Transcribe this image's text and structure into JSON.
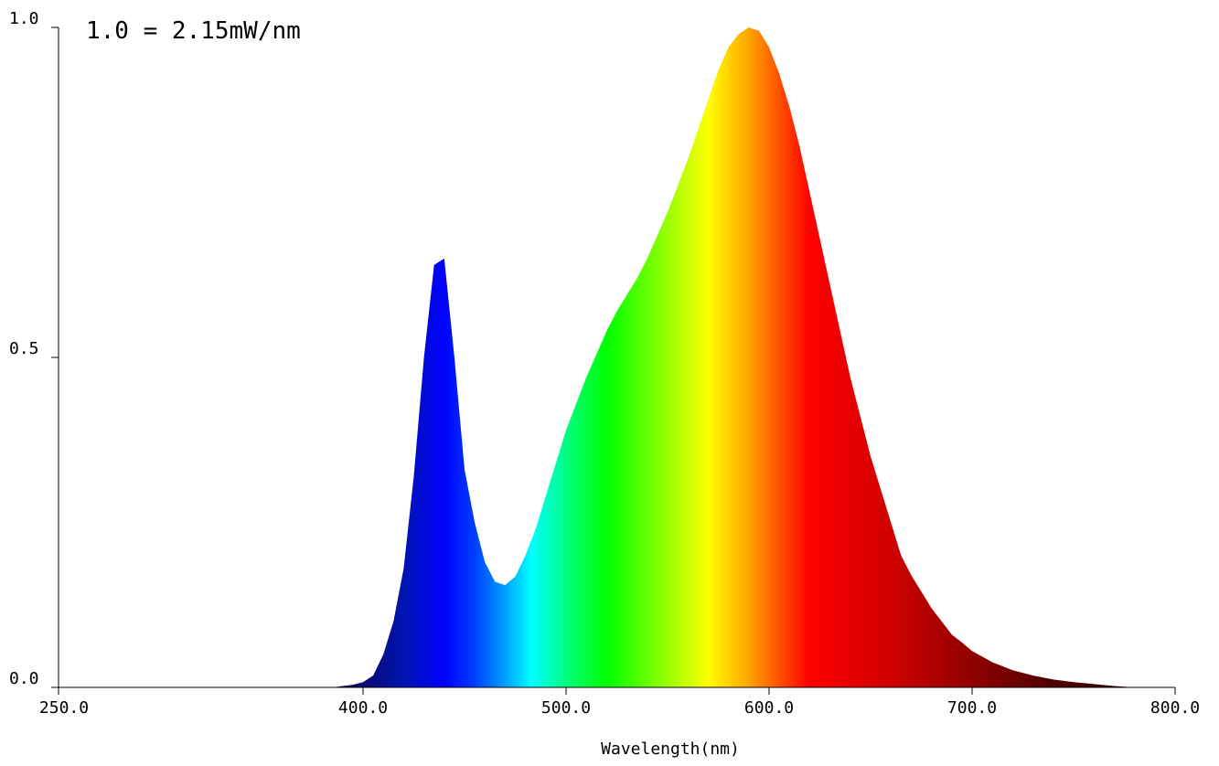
{
  "chart_data": {
    "type": "area",
    "title": "",
    "annotation": "1.0 = 2.15mW/nm",
    "xlabel": "Wavelength(nm)",
    "ylabel": "",
    "xlim": [
      250,
      800
    ],
    "ylim": [
      0,
      1
    ],
    "x_ticks": [
      {
        "value": 250,
        "label": "250.0"
      },
      {
        "value": 400,
        "label": "400.0"
      },
      {
        "value": 500,
        "label": "500.0"
      },
      {
        "value": 600,
        "label": "600.0"
      },
      {
        "value": 700,
        "label": "700.0"
      },
      {
        "value": 800,
        "label": "800.0"
      }
    ],
    "y_ticks": [
      {
        "value": 0,
        "label": "0.0"
      },
      {
        "value": 0.5,
        "label": "0.5"
      },
      {
        "value": 1,
        "label": "1.0"
      }
    ],
    "grid": false,
    "fill": "visible-spectrum gradient",
    "series": [
      {
        "x": [
          380,
          385,
          390,
          395,
          400,
          405,
          410,
          415,
          420,
          425,
          430,
          435,
          440,
          445,
          450,
          455,
          460,
          465,
          470,
          475,
          480,
          485,
          490,
          495,
          500,
          505,
          510,
          515,
          520,
          525,
          530,
          535,
          540,
          545,
          550,
          555,
          560,
          565,
          570,
          575,
          580,
          585,
          590,
          595,
          600,
          605,
          610,
          615,
          620,
          625,
          630,
          635,
          640,
          645,
          650,
          655,
          660,
          665,
          670,
          675,
          680,
          685,
          690,
          695,
          700,
          710,
          720,
          730,
          740,
          750,
          760,
          770,
          780,
          790
        ],
        "values": [
          0.0,
          0.0,
          0.002,
          0.004,
          0.008,
          0.018,
          0.05,
          0.1,
          0.18,
          0.32,
          0.5,
          0.64,
          0.65,
          0.5,
          0.33,
          0.25,
          0.19,
          0.16,
          0.155,
          0.168,
          0.2,
          0.24,
          0.29,
          0.34,
          0.39,
          0.43,
          0.47,
          0.505,
          0.54,
          0.57,
          0.595,
          0.62,
          0.65,
          0.685,
          0.72,
          0.76,
          0.8,
          0.845,
          0.89,
          0.935,
          0.97,
          0.99,
          1.0,
          0.995,
          0.97,
          0.93,
          0.88,
          0.82,
          0.75,
          0.68,
          0.61,
          0.54,
          0.47,
          0.41,
          0.35,
          0.3,
          0.25,
          0.2,
          0.17,
          0.145,
          0.12,
          0.1,
          0.08,
          0.068,
          0.055,
          0.038,
          0.026,
          0.018,
          0.012,
          0.008,
          0.005,
          0.002,
          0.0,
          0.0
        ]
      }
    ]
  }
}
